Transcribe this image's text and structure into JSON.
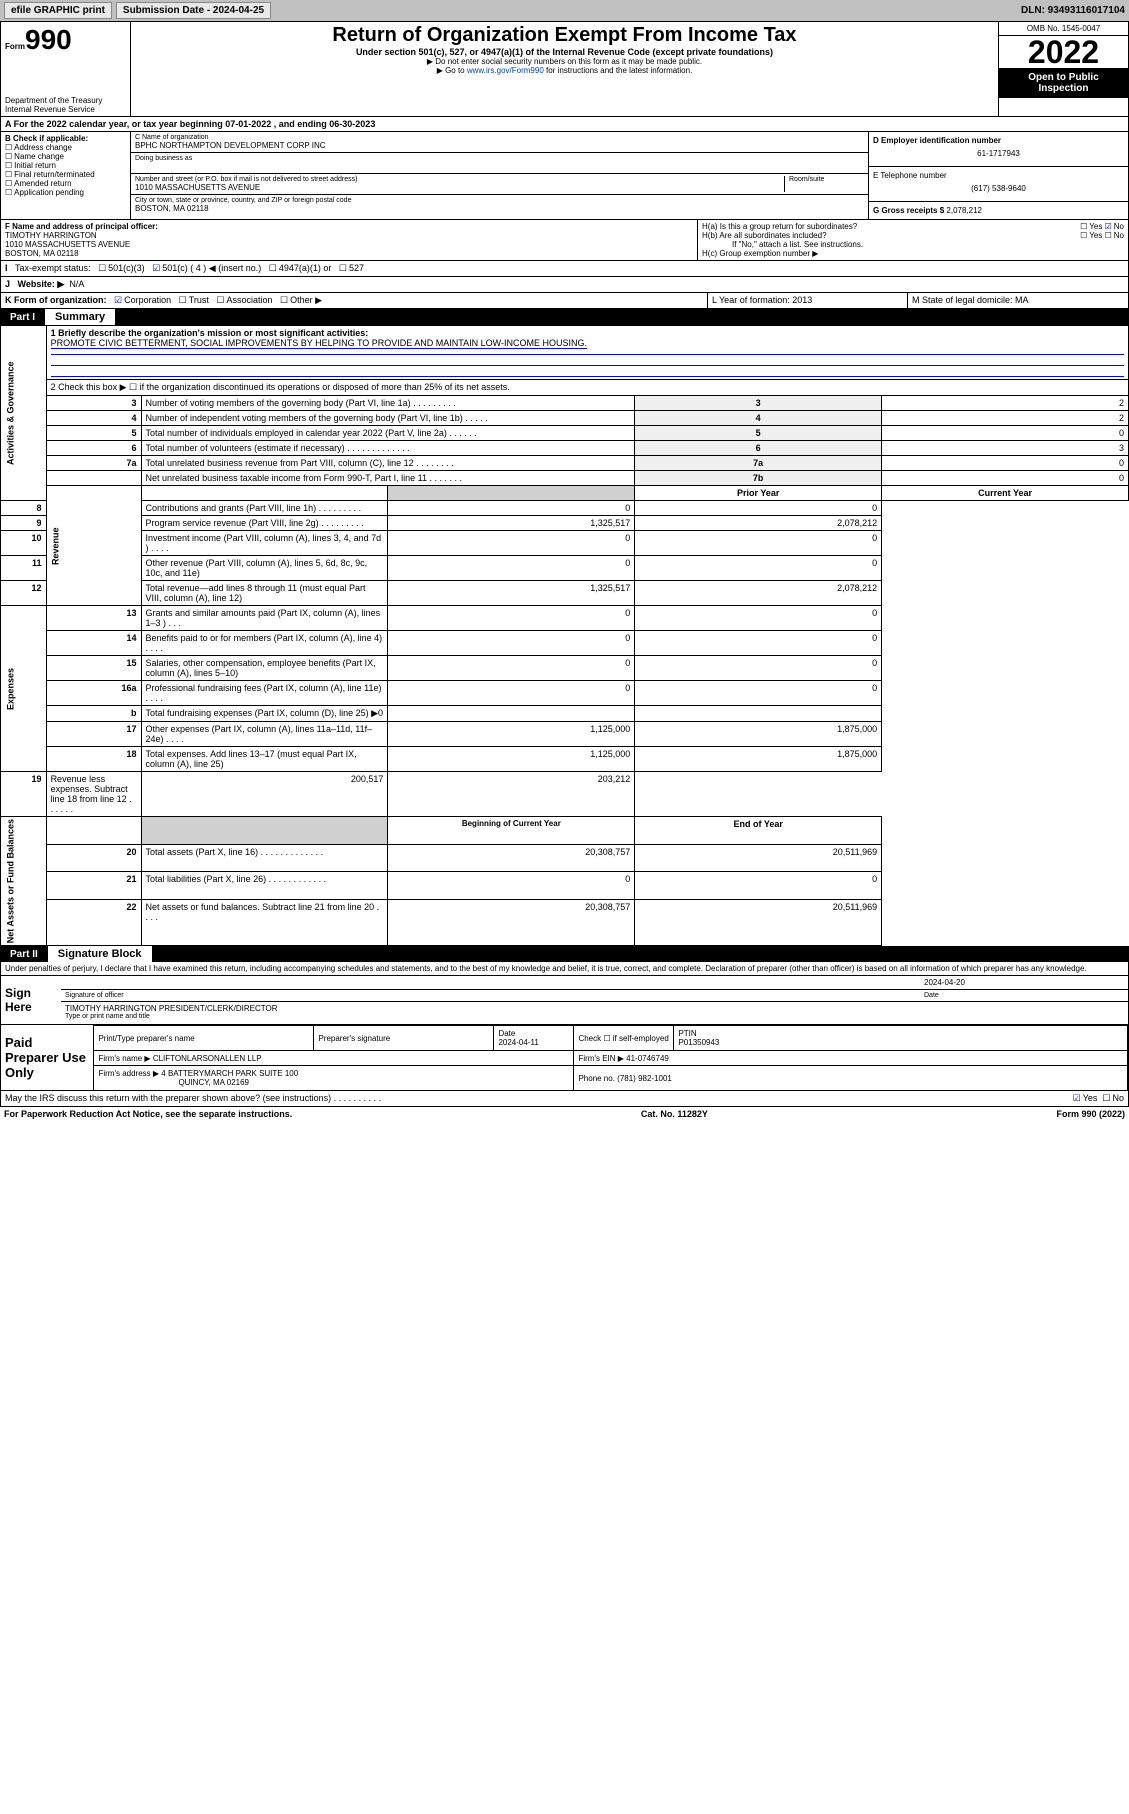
{
  "topbar": {
    "efile": "efile GRAPHIC print",
    "subdate_lbl": "Submission Date - 2024-04-25",
    "dln": "DLN: 93493116017104"
  },
  "header": {
    "form": "Form",
    "num": "990",
    "dept": "Department of the Treasury",
    "irs": "Internal Revenue Service",
    "title": "Return of Organization Exempt From Income Tax",
    "sub1": "Under section 501(c), 527, or 4947(a)(1) of the Internal Revenue Code (except private foundations)",
    "sub2": "▶ Do not enter social security numbers on this form as it may be made public.",
    "sub3_pre": "▶ Go to ",
    "sub3_link": "www.irs.gov/Form990",
    "sub3_post": " for instructions and the latest information.",
    "omb": "OMB No. 1545-0047",
    "year": "2022",
    "open": "Open to Public Inspection"
  },
  "rowA": "A For the 2022 calendar year, or tax year beginning 07-01-2022   , and ending 06-30-2023",
  "B": {
    "hdr": "B Check if applicable:",
    "items": [
      "Address change",
      "Name change",
      "Initial return",
      "Final return/terminated",
      "Amended return",
      "Application pending"
    ]
  },
  "C": {
    "name_lbl": "C Name of organization",
    "name": "BPHC NORTHAMPTON DEVELOPMENT CORP INC",
    "dba_lbl": "Doing business as",
    "addr_lbl": "Number and street (or P.O. box if mail is not delivered to street address)",
    "room": "Room/suite",
    "addr": "1010 MASSACHUSETTS AVENUE",
    "city_lbl": "City or town, state or province, country, and ZIP or foreign postal code",
    "city": "BOSTON, MA  02118"
  },
  "D": {
    "ein_lbl": "D Employer identification number",
    "ein": "61-1717943",
    "tel_lbl": "E Telephone number",
    "tel": "(617) 538-9640",
    "gross_lbl": "G Gross receipts $",
    "gross": "2,078,212"
  },
  "F": {
    "lbl": "F Name and address of principal officer:",
    "name": "TIMOTHY HARRINGTON",
    "addr": "1010 MASSACHUSETTS AVENUE",
    "city": "BOSTON, MA  02118"
  },
  "H": {
    "a": "H(a)  Is this a group return for subordinates?",
    "b": "H(b)  Are all subordinates included?",
    "bnote": "If \"No,\" attach a list. See instructions.",
    "c": "H(c)  Group exemption number ▶",
    "yes": "Yes",
    "no": "No"
  },
  "I": {
    "lbl": "Tax-exempt status:",
    "o1": "501(c)(3)",
    "o2": "501(c) ( 4 ) ◀ (insert no.)",
    "o3": "4947(a)(1) or",
    "o4": "527"
  },
  "J": {
    "lbl": "Website: ▶",
    "val": "N/A"
  },
  "K": {
    "lbl": "K Form of organization:",
    "opts": [
      "Corporation",
      "Trust",
      "Association",
      "Other ▶"
    ],
    "L": "L Year of formation: 2013",
    "M": "M State of legal domicile: MA"
  },
  "part1": {
    "num": "Part I",
    "title": "Summary"
  },
  "summary": {
    "line1_lbl": "1  Briefly describe the organization's mission or most significant activities:",
    "mission": "PROMOTE CIVIC BETTERMENT, SOCIAL IMPROVEMENTS BY HELPING TO PROVIDE AND MAINTAIN LOW-INCOME HOUSING.",
    "line2": "2   Check this box ▶ ☐  if the organization discontinued its operations or disposed of more than 25% of its net assets.",
    "sideA": "Activities & Governance",
    "sideR": "Revenue",
    "sideE": "Expenses",
    "sideN": "Net Assets or Fund Balances",
    "rows_gov": [
      {
        "n": "3",
        "t": "Number of voting members of the governing body (Part VI, line 1a)   .    .    .    .    .    .    .    .    .",
        "b": "3",
        "v": "2"
      },
      {
        "n": "4",
        "t": "Number of independent voting members of the governing body (Part VI, line 1b)   .    .    .    .    .",
        "b": "4",
        "v": "2"
      },
      {
        "n": "5",
        "t": "Total number of individuals employed in calendar year 2022 (Part V, line 2a)   .    .    .    .    .    .",
        "b": "5",
        "v": "0"
      },
      {
        "n": "6",
        "t": "Total number of volunteers (estimate if necessary)    .    .    .    .    .    .    .    .    .    .    .    .    .",
        "b": "6",
        "v": "3"
      },
      {
        "n": "7a",
        "t": "Total unrelated business revenue from Part VIII, column (C), line 12   .    .    .    .    .    .    .    .",
        "b": "7a",
        "v": "0"
      },
      {
        "n": "",
        "t": "Net unrelated business taxable income from Form 990-T, Part I, line 11   .    .    .    .    .    .    .",
        "b": "7b",
        "v": "0"
      }
    ],
    "prior": "Prior Year",
    "current": "Current Year",
    "rows_rev": [
      {
        "n": "8",
        "t": "Contributions and grants (Part VIII, line 1h)   .    .    .    .    .    .    .    .    .",
        "p": "0",
        "c": "0"
      },
      {
        "n": "9",
        "t": "Program service revenue (Part VIII, line 2g)    .    .    .    .    .    .    .    .    .",
        "p": "1,325,517",
        "c": "2,078,212"
      },
      {
        "n": "10",
        "t": "Investment income (Part VIII, column (A), lines 3, 4, and 7d )    .    .    .    .",
        "p": "0",
        "c": "0"
      },
      {
        "n": "11",
        "t": "Other revenue (Part VIII, column (A), lines 5, 6d, 8c, 9c, 10c, and 11e)",
        "p": "0",
        "c": "0"
      },
      {
        "n": "12",
        "t": "Total revenue—add lines 8 through 11 (must equal Part VIII, column (A), line 12)",
        "p": "1,325,517",
        "c": "2,078,212"
      }
    ],
    "rows_exp": [
      {
        "n": "13",
        "t": "Grants and similar amounts paid (Part IX, column (A), lines 1–3 )   .    .    .",
        "p": "0",
        "c": "0"
      },
      {
        "n": "14",
        "t": "Benefits paid to or for members (Part IX, column (A), line 4)    .    .    .    .",
        "p": "0",
        "c": "0"
      },
      {
        "n": "15",
        "t": "Salaries, other compensation, employee benefits (Part IX, column (A), lines 5–10)",
        "p": "0",
        "c": "0"
      },
      {
        "n": "16a",
        "t": "Professional fundraising fees (Part IX, column (A), line 11e)   .    .    .    .",
        "p": "0",
        "c": "0"
      },
      {
        "n": "b",
        "t": "Total fundraising expenses (Part IX, column (D), line 25) ▶0",
        "p": "",
        "c": "",
        "grey": true
      },
      {
        "n": "17",
        "t": "Other expenses (Part IX, column (A), lines 11a–11d, 11f–24e)   .    .    .    .",
        "p": "1,125,000",
        "c": "1,875,000"
      },
      {
        "n": "18",
        "t": "Total expenses. Add lines 13–17 (must equal Part IX, column (A), line 25)",
        "p": "1,125,000",
        "c": "1,875,000"
      },
      {
        "n": "19",
        "t": "Revenue less expenses. Subtract line 18 from line 12   .    .    .    .    .    .",
        "p": "200,517",
        "c": "203,212"
      }
    ],
    "begin": "Beginning of Current Year",
    "end": "End of Year",
    "rows_net": [
      {
        "n": "20",
        "t": "Total assets (Part X, line 16)    .    .    .    .    .    .    .    .    .    .    .    .    .",
        "p": "20,308,757",
        "c": "20,511,969"
      },
      {
        "n": "21",
        "t": "Total liabilities (Part X, line 26)   .    .    .    .    .    .    .    .    .    .    .    .",
        "p": "0",
        "c": "0"
      },
      {
        "n": "22",
        "t": "Net assets or fund balances. Subtract line 21 from line 20    .    .    .    .",
        "p": "20,308,757",
        "c": "20,511,969"
      }
    ]
  },
  "part2": {
    "num": "Part II",
    "title": "Signature Block"
  },
  "penal": "Under penalties of perjury, I declare that I have examined this return, including accompanying schedules and statements, and to the best of my knowledge and belief, it is true, correct, and complete. Declaration of preparer (other than officer) is based on all information of which preparer has any knowledge.",
  "sign": {
    "lbl": "Sign Here",
    "sig_lbl": "Signature of officer",
    "date_lbl": "Date",
    "date": "2024-04-20",
    "name": "TIMOTHY HARRINGTON  PRESIDENT/CLERK/DIRECTOR",
    "name_lbl": "Type or print name and title"
  },
  "paid": {
    "lbl": "Paid Preparer Use Only",
    "h1": "Print/Type preparer's name",
    "h2": "Preparer's signature",
    "h3_lbl": "Date",
    "h3": "2024-04-11",
    "h4": "Check ☐ if self-employed",
    "h5_lbl": "PTIN",
    "h5": "P01350943",
    "firm_lbl": "Firm's name    ▶",
    "firm": "CLIFTONLARSONALLEN LLP",
    "ein_lbl": "Firm's EIN ▶",
    "ein": "41-0746749",
    "addr_lbl": "Firm's address ▶",
    "addr1": "4 BATTERYMARCH PARK SUITE 100",
    "addr2": "QUINCY, MA  02169",
    "ph_lbl": "Phone no.",
    "ph": "(781) 982-1001"
  },
  "foot": {
    "q": "May the IRS discuss this return with the preparer shown above? (see instructions)    .    .    .    .    .    .    .    .    .    .",
    "yes": "Yes",
    "no": "No"
  },
  "foot2": {
    "l": "For Paperwork Reduction Act Notice, see the separate instructions.",
    "m": "Cat. No. 11282Y",
    "r": "Form 990 (2022)"
  }
}
